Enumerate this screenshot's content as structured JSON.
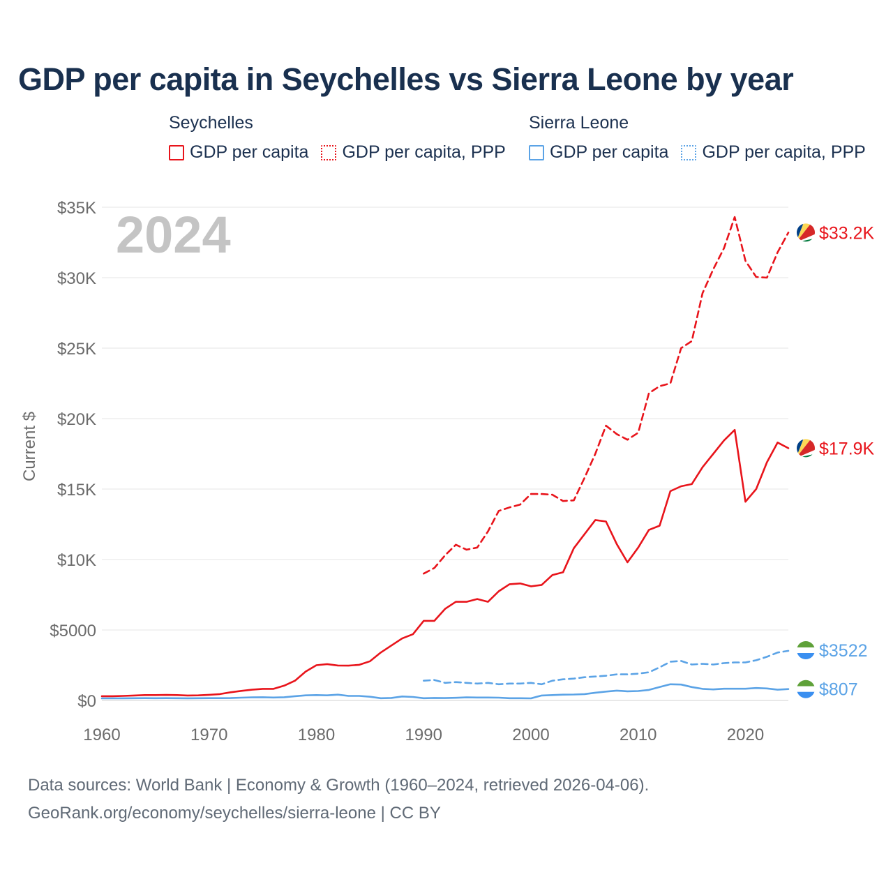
{
  "title": "GDP per capita in Seychelles vs Sierra Leone by year",
  "legend": {
    "groups": [
      {
        "country": "Seychelles",
        "items": [
          {
            "label": "GDP per capita",
            "style": "solid"
          },
          {
            "label": "GDP per capita, PPP",
            "style": "dotted"
          }
        ],
        "color": "#e8141b"
      },
      {
        "country": "Sierra Leone",
        "items": [
          {
            "label": "GDP per capita",
            "style": "solid"
          },
          {
            "label": "GDP per capita, PPP",
            "style": "dotted"
          }
        ],
        "color": "#5ba3e6"
      }
    ]
  },
  "footer": {
    "line1": "Data sources: World Bank | Economy & Growth (1960–2024, retrieved 2026-04-06).",
    "line2": "GeoRank.org/economy/seychelles/sierra-leone | CC BY"
  },
  "chart_data": {
    "type": "line",
    "title": "GDP per capita in Seychelles vs Sierra Leone by year",
    "year_label": "2024",
    "xlabel": "",
    "ylabel": "Current $",
    "xlim": [
      1960,
      2024
    ],
    "ylim": [
      0,
      35000
    ],
    "x_ticks": [
      1960,
      1970,
      1980,
      1990,
      2000,
      2010,
      2020
    ],
    "y_ticks": [
      {
        "value": 0,
        "label": "$0"
      },
      {
        "value": 5000,
        "label": "$5000"
      },
      {
        "value": 10000,
        "label": "$10K"
      },
      {
        "value": 15000,
        "label": "$15K"
      },
      {
        "value": 20000,
        "label": "$20K"
      },
      {
        "value": 25000,
        "label": "$25K"
      },
      {
        "value": 30000,
        "label": "$30K"
      },
      {
        "value": 35000,
        "label": "$35K"
      }
    ],
    "grid": true,
    "series": [
      {
        "name": "Seychelles GDP per capita",
        "color": "#e8141b",
        "dash": "solid",
        "flag": "seychelles",
        "end_label": "$17.9K",
        "x": [
          1960,
          1961,
          1962,
          1963,
          1964,
          1965,
          1966,
          1967,
          1968,
          1969,
          1970,
          1971,
          1972,
          1973,
          1974,
          1975,
          1976,
          1977,
          1978,
          1979,
          1980,
          1981,
          1982,
          1983,
          1984,
          1985,
          1986,
          1987,
          1988,
          1989,
          1990,
          1991,
          1992,
          1993,
          1994,
          1995,
          1996,
          1997,
          1998,
          1999,
          2000,
          2001,
          2002,
          2003,
          2004,
          2005,
          2006,
          2007,
          2008,
          2009,
          2010,
          2011,
          2012,
          2013,
          2014,
          2015,
          2016,
          2017,
          2018,
          2019,
          2020,
          2021,
          2022,
          2023,
          2024
        ],
        "values": [
          300,
          300,
          320,
          350,
          380,
          380,
          390,
          380,
          350,
          360,
          400,
          450,
          580,
          680,
          760,
          820,
          820,
          1050,
          1400,
          2050,
          2500,
          2580,
          2480,
          2470,
          2530,
          2780,
          3400,
          3900,
          4400,
          4700,
          5650,
          5650,
          6500,
          7000,
          7000,
          7200,
          7000,
          7750,
          8250,
          8300,
          8100,
          8200,
          8900,
          9100,
          10800,
          11800,
          12800,
          12700,
          11100,
          9800,
          10850,
          12100,
          12400,
          14850,
          15200,
          15350,
          16550,
          17500,
          18450,
          19200,
          14100,
          15000,
          16900,
          18300,
          17900
        ]
      },
      {
        "name": "Seychelles GDP per capita, PPP",
        "color": "#e8141b",
        "dash": "dashed",
        "flag": "seychelles",
        "end_label": "$33.2K",
        "x": [
          1990,
          1991,
          1992,
          1993,
          1994,
          1995,
          1996,
          1997,
          1998,
          1999,
          2000,
          2001,
          2002,
          2003,
          2004,
          2005,
          2006,
          2007,
          2008,
          2009,
          2010,
          2011,
          2012,
          2013,
          2014,
          2015,
          2016,
          2017,
          2018,
          2019,
          2020,
          2021,
          2022,
          2023,
          2024
        ],
        "values": [
          9000,
          9400,
          10300,
          11050,
          10700,
          10850,
          12000,
          13450,
          13700,
          13900,
          14650,
          14650,
          14600,
          14150,
          14200,
          15800,
          17500,
          19500,
          18900,
          18500,
          19000,
          21800,
          22300,
          22500,
          25000,
          25500,
          28900,
          30600,
          32100,
          34300,
          31200,
          30050,
          30000,
          31800,
          33200
        ]
      },
      {
        "name": "Sierra Leone GDP per capita",
        "color": "#5ba3e6",
        "dash": "solid",
        "flag": "sierra-leone",
        "end_label": "$807",
        "x": [
          1960,
          1961,
          1962,
          1963,
          1964,
          1965,
          1966,
          1967,
          1968,
          1969,
          1970,
          1971,
          1972,
          1973,
          1974,
          1975,
          1976,
          1977,
          1978,
          1979,
          1980,
          1981,
          1982,
          1983,
          1984,
          1985,
          1986,
          1987,
          1988,
          1989,
          1990,
          1991,
          1992,
          1993,
          1994,
          1995,
          1996,
          1997,
          1998,
          1999,
          2000,
          2001,
          2002,
          2003,
          2004,
          2005,
          2006,
          2007,
          2008,
          2009,
          2010,
          2011,
          2012,
          2013,
          2014,
          2015,
          2016,
          2017,
          2018,
          2019,
          2020,
          2021,
          2022,
          2023,
          2024
        ],
        "values": [
          150,
          150,
          155,
          160,
          165,
          160,
          165,
          160,
          155,
          160,
          165,
          165,
          170,
          200,
          220,
          230,
          210,
          230,
          300,
          360,
          380,
          360,
          410,
          320,
          320,
          260,
          160,
          180,
          280,
          250,
          160,
          180,
          170,
          190,
          220,
          210,
          210,
          200,
          160,
          160,
          150,
          350,
          380,
          410,
          420,
          450,
          550,
          630,
          700,
          650,
          670,
          750,
          950,
          1150,
          1130,
          950,
          820,
          780,
          830,
          830,
          830,
          880,
          850,
          760,
          807
        ]
      },
      {
        "name": "Sierra Leone GDP per capita, PPP",
        "color": "#5ba3e6",
        "dash": "dashed",
        "flag": "sierra-leone",
        "end_label": "$3522",
        "x": [
          1990,
          1991,
          1992,
          1993,
          1994,
          1995,
          1996,
          1997,
          1998,
          1999,
          2000,
          2001,
          2002,
          2003,
          2004,
          2005,
          2006,
          2007,
          2008,
          2009,
          2010,
          2011,
          2012,
          2013,
          2014,
          2015,
          2016,
          2017,
          2018,
          2019,
          2020,
          2021,
          2022,
          2023,
          2024
        ],
        "values": [
          1400,
          1450,
          1250,
          1300,
          1250,
          1200,
          1250,
          1150,
          1200,
          1200,
          1250,
          1150,
          1400,
          1500,
          1550,
          1650,
          1700,
          1750,
          1850,
          1850,
          1900,
          2000,
          2350,
          2750,
          2800,
          2550,
          2600,
          2550,
          2650,
          2700,
          2700,
          2850,
          3100,
          3400,
          3522
        ]
      }
    ]
  }
}
